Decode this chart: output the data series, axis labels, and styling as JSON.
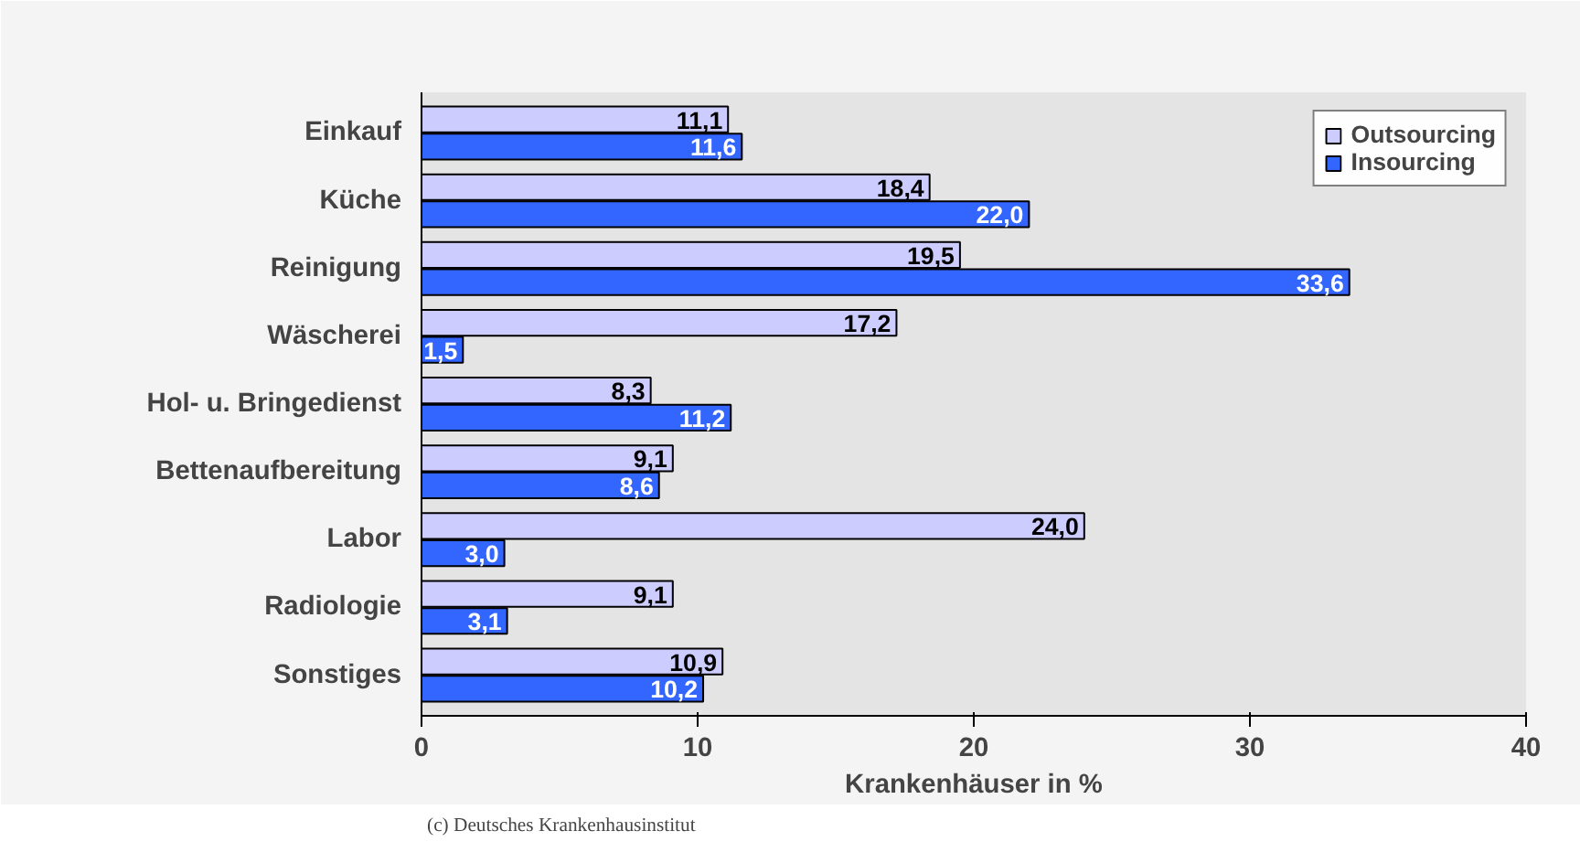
{
  "chart_data": {
    "type": "bar",
    "orientation": "horizontal",
    "xlabel": "Krankenhäuser in %",
    "categories": [
      "Einkauf",
      "Küche",
      "Reinigung",
      "Wäscherei",
      "Hol- u. Bringedienst",
      "Bettenaufbereitung",
      "Labor",
      "Radiologie",
      "Sonstiges"
    ],
    "series": [
      {
        "name": "Outsourcing",
        "color": "#ccccff",
        "values": [
          11.1,
          18.4,
          19.5,
          17.2,
          8.3,
          9.1,
          24.0,
          9.1,
          10.9
        ],
        "value_labels": [
          "11,1",
          "18,4",
          "19,5",
          "17,2",
          "8,3",
          "9,1",
          "24,0",
          "9,1",
          "10,9"
        ]
      },
      {
        "name": "Insourcing",
        "color": "#3366ff",
        "values": [
          11.6,
          22.0,
          33.6,
          1.5,
          11.2,
          8.6,
          3.0,
          3.1,
          10.2
        ],
        "value_labels": [
          "11,6",
          "22,0",
          "33,6",
          "1,5",
          "11,2",
          "8,6",
          "3,0",
          "3,1",
          "10,2"
        ]
      }
    ],
    "xlim": [
      0,
      40
    ],
    "xticks": [
      0,
      10,
      20,
      30,
      40
    ],
    "legend": "top right",
    "annotations": [
      "(c) Deutsches Krankenhausinstitut"
    ]
  }
}
